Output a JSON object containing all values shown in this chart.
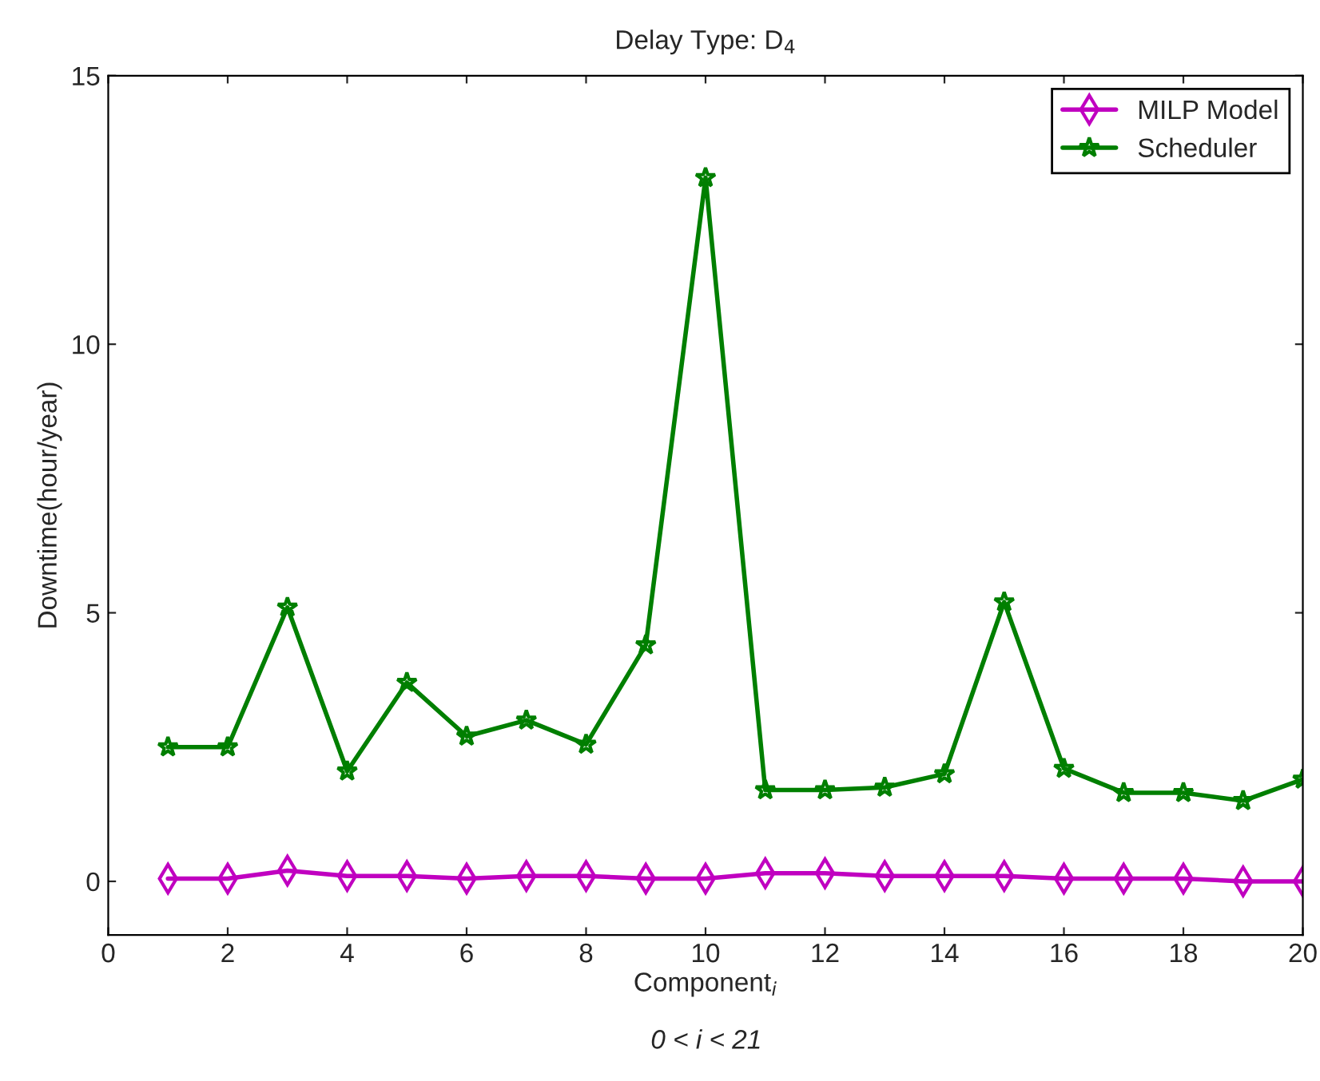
{
  "chart_data": {
    "type": "line",
    "title": "Delay Type: D$_{4}$",
    "xlabel": "Component$_{i}$",
    "ylabel": "Downtime(hour/year)",
    "annotations": [
      "0 < i < 21"
    ],
    "x": [
      1,
      2,
      3,
      4,
      5,
      6,
      7,
      8,
      9,
      10,
      11,
      12,
      13,
      14,
      15,
      16,
      17,
      18,
      19,
      20
    ],
    "series": [
      {
        "name": "MILP Model",
        "color": "#c000c0",
        "marker": "diamond",
        "values": [
          0.05,
          0.05,
          0.2,
          0.1,
          0.1,
          0.05,
          0.1,
          0.1,
          0.05,
          0.05,
          0.15,
          0.15,
          0.1,
          0.1,
          0.1,
          0.05,
          0.05,
          0.05,
          0.0,
          0.0
        ]
      },
      {
        "name": "Scheduler",
        "color": "#007f00",
        "marker": "star",
        "values": [
          2.5,
          2.5,
          5.1,
          2.05,
          3.7,
          2.7,
          3.0,
          2.55,
          4.4,
          13.1,
          1.7,
          1.7,
          1.75,
          2.0,
          5.2,
          2.1,
          1.65,
          1.65,
          1.5,
          1.9
        ]
      }
    ],
    "xlim": [
      0,
      20
    ],
    "xticks": [
      0,
      2,
      4,
      6,
      8,
      10,
      12,
      14,
      16,
      18,
      20
    ],
    "ylim": [
      -1,
      15
    ],
    "yticks": [
      0,
      5,
      10,
      15
    ],
    "grid": false,
    "legend": "top right",
    "line_style": "solid"
  }
}
